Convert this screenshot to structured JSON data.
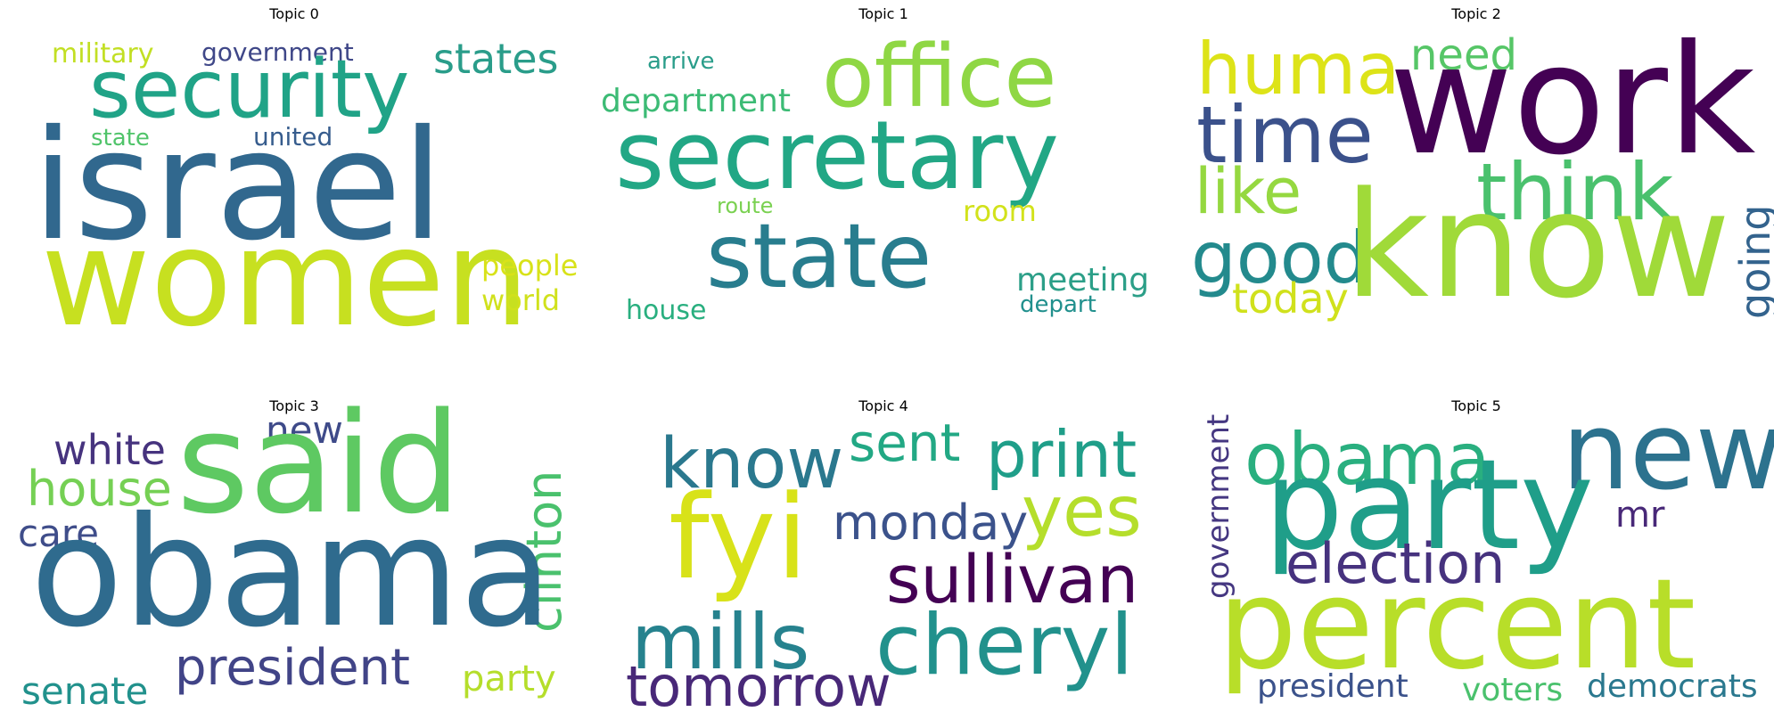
{
  "figure": {
    "panels": [
      {
        "title": "Topic 0",
        "words": [
          {
            "text": "military",
            "color": "#c2df23"
          },
          {
            "text": "government",
            "color": "#3f4788"
          },
          {
            "text": "states",
            "color": "#2a9d8a"
          },
          {
            "text": "security",
            "color": "#20a387"
          },
          {
            "text": "state",
            "color": "#50c46a"
          },
          {
            "text": "united",
            "color": "#365c8d"
          },
          {
            "text": "israel",
            "color": "#31688e"
          },
          {
            "text": "women",
            "color": "#c7e020"
          },
          {
            "text": "people",
            "color": "#d8e219"
          },
          {
            "text": "world",
            "color": "#d0e11c"
          }
        ]
      },
      {
        "title": "Topic 1",
        "words": [
          {
            "text": "arrive",
            "color": "#2a9d8a"
          },
          {
            "text": "office",
            "color": "#8fd744"
          },
          {
            "text": "department",
            "color": "#3cbb75"
          },
          {
            "text": "secretary",
            "color": "#22a785"
          },
          {
            "text": "route",
            "color": "#7ad151"
          },
          {
            "text": "room",
            "color": "#d2e21b"
          },
          {
            "text": "state",
            "color": "#287d8e"
          },
          {
            "text": "meeting",
            "color": "#2c9f88"
          },
          {
            "text": "depart",
            "color": "#21908d"
          },
          {
            "text": "house",
            "color": "#29af7f"
          }
        ]
      },
      {
        "title": "Topic 2",
        "words": [
          {
            "text": "huma",
            "color": "#dde318"
          },
          {
            "text": "need",
            "color": "#56c667"
          },
          {
            "text": "work",
            "color": "#440154"
          },
          {
            "text": "time",
            "color": "#3b518b"
          },
          {
            "text": "think",
            "color": "#4ac16d"
          },
          {
            "text": "like",
            "color": "#95d840"
          },
          {
            "text": "good",
            "color": "#238a8d"
          },
          {
            "text": "know",
            "color": "#a0da39"
          },
          {
            "text": "today",
            "color": "#d0e11c"
          },
          {
            "text": "going",
            "color": "#33638d"
          }
        ]
      },
      {
        "title": "Topic 3",
        "words": [
          {
            "text": "white",
            "color": "#46337e"
          },
          {
            "text": "new",
            "color": "#3e4a89"
          },
          {
            "text": "said",
            "color": "#5ec962"
          },
          {
            "text": "house",
            "color": "#75d054"
          },
          {
            "text": "care",
            "color": "#3f4d8a"
          },
          {
            "text": "clinton",
            "color": "#4ac16d"
          },
          {
            "text": "obama",
            "color": "#2f6b8e"
          },
          {
            "text": "president",
            "color": "#414487"
          },
          {
            "text": "senate",
            "color": "#21918c"
          },
          {
            "text": "party",
            "color": "#b5de2b"
          }
        ]
      },
      {
        "title": "Topic 4",
        "words": [
          {
            "text": "know",
            "color": "#2a788e"
          },
          {
            "text": "sent",
            "color": "#22a884"
          },
          {
            "text": "print",
            "color": "#1f9e89"
          },
          {
            "text": "fyi",
            "color": "#d8e219"
          },
          {
            "text": "monday",
            "color": "#3b528b"
          },
          {
            "text": "yes",
            "color": "#b5de2b"
          },
          {
            "text": "sullivan",
            "color": "#440154"
          },
          {
            "text": "mills",
            "color": "#26828e"
          },
          {
            "text": "cheryl",
            "color": "#21918c"
          },
          {
            "text": "tomorrow",
            "color": "#482878"
          }
        ]
      },
      {
        "title": "Topic 5",
        "words": [
          {
            "text": "government",
            "color": "#453781"
          },
          {
            "text": "obama",
            "color": "#29af7f"
          },
          {
            "text": "new",
            "color": "#2c728e"
          },
          {
            "text": "party",
            "color": "#1f9e89"
          },
          {
            "text": "mr",
            "color": "#482878"
          },
          {
            "text": "election",
            "color": "#46327e"
          },
          {
            "text": "percent",
            "color": "#b8de29"
          },
          {
            "text": "president",
            "color": "#3b528b"
          },
          {
            "text": "voters",
            "color": "#4ac16d"
          },
          {
            "text": "democrats",
            "color": "#2a788e"
          }
        ]
      }
    ]
  }
}
